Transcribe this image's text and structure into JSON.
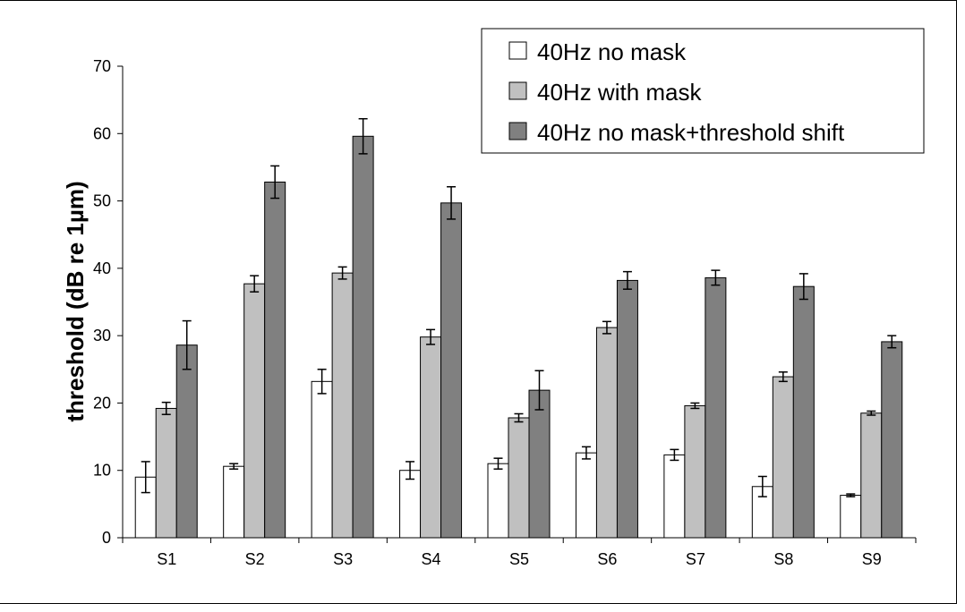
{
  "chart_data": {
    "type": "bar",
    "title": "",
    "xlabel": "",
    "ylabel": "threshold (dB re 1µm)",
    "ylim": [
      0,
      70
    ],
    "yticks": [
      0,
      10,
      20,
      30,
      40,
      50,
      60,
      70
    ],
    "grid": false,
    "legend_position": "top-right",
    "categories": [
      "S1",
      "S2",
      "S3",
      "S4",
      "S5",
      "S6",
      "S7",
      "S8",
      "S9"
    ],
    "series": [
      {
        "name": "40Hz no mask",
        "color": "#ffffff",
        "values": [
          9.0,
          10.6,
          23.2,
          10.0,
          11.0,
          12.6,
          12.3,
          7.6,
          6.3
        ],
        "errors": [
          2.3,
          0.4,
          1.8,
          1.3,
          0.8,
          0.9,
          0.8,
          1.5,
          0.2
        ]
      },
      {
        "name": "40Hz with mask",
        "color": "#c0c0c0",
        "values": [
          19.2,
          37.7,
          39.3,
          29.8,
          17.8,
          31.2,
          19.6,
          23.9,
          18.5
        ],
        "errors": [
          0.9,
          1.2,
          0.9,
          1.1,
          0.6,
          0.9,
          0.4,
          0.7,
          0.3
        ]
      },
      {
        "name": "40Hz no mask+threshold shift",
        "color": "#808080",
        "values": [
          28.6,
          52.8,
          59.6,
          49.7,
          21.9,
          38.2,
          38.6,
          37.3,
          29.1
        ],
        "errors": [
          3.6,
          2.4,
          2.6,
          2.4,
          2.9,
          1.3,
          1.1,
          1.9,
          0.9
        ]
      }
    ]
  }
}
